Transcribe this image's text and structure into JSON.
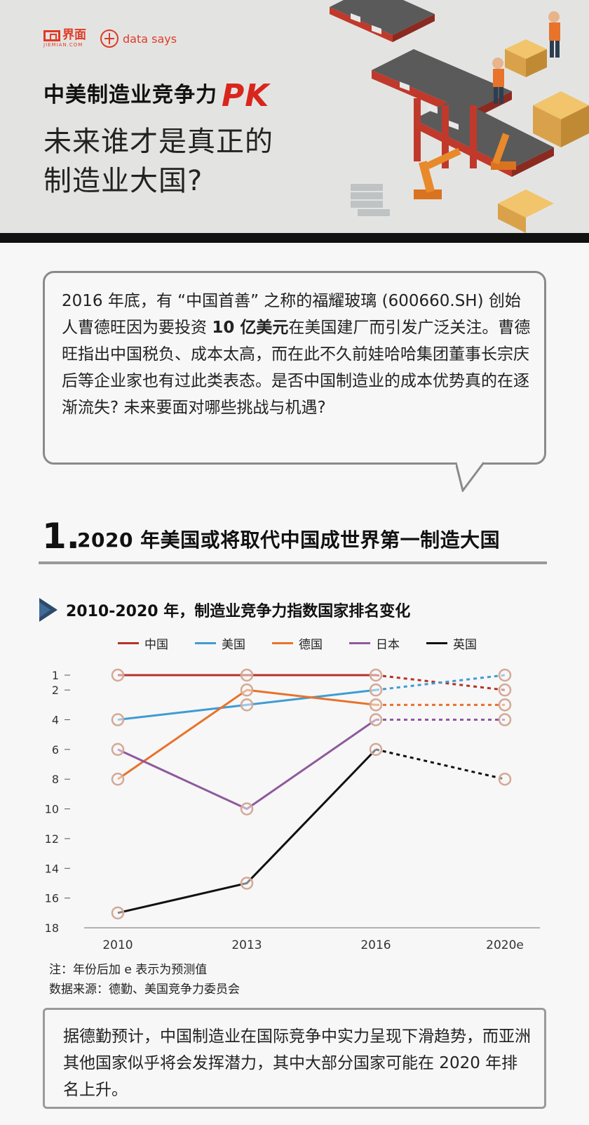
{
  "header": {
    "brand_name": "界面",
    "brand_sub": "JIEMIAN.COM",
    "partner_name": "data says",
    "title_line1": "中美制造业竞争力",
    "title_pk": "PK",
    "title_line2": "未来谁才是真正的",
    "title_line3": "制造业大国?"
  },
  "intro": {
    "text_before": "2016 年底，有 “中国首善” 之称的福耀玻璃 (600660.SH) 创始人曹德旺因为要投资 ",
    "text_bold": "10 亿美元",
    "text_after": "在美国建厂而引发广泛关注。曹德旺指出中国税负、成本太高，而在此不久前娃哈哈集团董事长宗庆后等企业家也有过此类表态。是否中国制造业的成本优势真的在逐渐流失? 未来要面对哪些挑战与机遇?"
  },
  "section": {
    "number": "1.",
    "title": "2020 年美国或将取代中国成世界第一制造大国"
  },
  "chart_data": {
    "type": "line",
    "title": "2010-2020 年，制造业竞争力指数国家排名变化",
    "xlabel": "",
    "ylabel": "",
    "categories": [
      "2010",
      "2013",
      "2016",
      "2020e"
    ],
    "y_ticks": [
      "1",
      "2",
      "4",
      "6",
      "8",
      "10",
      "12",
      "14",
      "16",
      "18"
    ],
    "ylim": [
      1,
      18
    ],
    "y_inverted": true,
    "forecast_from_index": 2,
    "legend_position": "top",
    "series": [
      {
        "name": "中国",
        "color": "#b5322a",
        "values": [
          1,
          1,
          1,
          2
        ]
      },
      {
        "name": "美国",
        "color": "#3f9bd4",
        "values": [
          4,
          3,
          2,
          1
        ]
      },
      {
        "name": "德国",
        "color": "#e8722a",
        "values": [
          8,
          2,
          3,
          3
        ]
      },
      {
        "name": "日本",
        "color": "#8e5a9c",
        "values": [
          6,
          10,
          4,
          4
        ]
      },
      {
        "name": "英国",
        "color": "#111111",
        "values": [
          17,
          15,
          6,
          8
        ]
      }
    ],
    "marker_color": "#d4a996"
  },
  "notes": {
    "note1": "注：年份后加 e 表示为预测值",
    "note2": "数据来源：德勤、美国竞争力委员会"
  },
  "summary": {
    "text": "据德勤预计，中国制造业在国际竞争中实力呈现下滑趋势，而亚洲其他国家似乎将会发挥潜力，其中大部分国家可能在 2020 年排名上升。"
  }
}
